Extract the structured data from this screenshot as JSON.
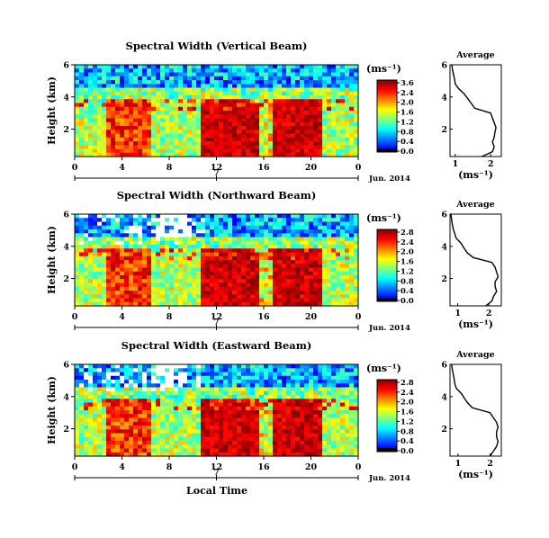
{
  "chart_data": [
    {
      "type": "heatmap",
      "title": "Spectral Width (Vertical Beam)",
      "ylabel": "Height (km)",
      "xticks": [
        "0",
        "4",
        "8",
        "12",
        "16",
        "20",
        "0"
      ],
      "yticks": [
        "6",
        "4",
        "2"
      ],
      "xlim": [
        0,
        24
      ],
      "ylim": [
        0.3,
        6
      ],
      "date_day": "7",
      "date_label": "Jun. 2014",
      "colorbar_unit": "(ms⁻¹)",
      "colorbar_ticks": [
        "3.6",
        "2.4",
        "2.0",
        "1.6",
        "1.2",
        "0.8",
        "0.4",
        "0.0"
      ],
      "average": {
        "title": "Average",
        "xlabel": "(ms⁻¹)",
        "xticks": [
          "1",
          "2"
        ],
        "yticks": [
          "6",
          "4",
          "2"
        ],
        "xlim": [
          0.85,
          2.3
        ],
        "height": [
          0.3,
          0.6,
          0.9,
          1.2,
          1.5,
          1.8,
          2.1,
          2.4,
          2.7,
          3.0,
          3.3,
          3.6,
          3.9,
          4.2,
          4.5,
          4.8,
          5.1,
          5.4,
          5.7,
          6.0
        ],
        "width": [
          1.75,
          2.05,
          2.1,
          2.05,
          2.1,
          2.12,
          2.15,
          2.1,
          2.05,
          2.0,
          1.55,
          1.45,
          1.35,
          1.25,
          1.1,
          1.0,
          0.98,
          0.95,
          0.92,
          0.9
        ]
      }
    },
    {
      "type": "heatmap",
      "title": "Spectral Width (Northward Beam)",
      "ylabel": "Height (km)",
      "xticks": [
        "0",
        "4",
        "8",
        "12",
        "16",
        "20",
        "0"
      ],
      "yticks": [
        "6",
        "4",
        "2"
      ],
      "xlim": [
        0,
        24
      ],
      "ylim": [
        0.3,
        6
      ],
      "date_day": "7",
      "date_label": "Jun. 2014",
      "colorbar_unit": "(ms⁻¹)",
      "colorbar_ticks": [
        "2.8",
        "2.4",
        "2.0",
        "1.6",
        "1.2",
        "0.8",
        "0.4",
        "0.0"
      ],
      "average": {
        "title": "Average",
        "xlabel": "(ms⁻¹)",
        "xticks": [
          "1",
          "2"
        ],
        "yticks": [
          "6",
          "4",
          "2"
        ],
        "xlim": [
          0.75,
          2.4
        ],
        "height": [
          0.3,
          0.6,
          0.9,
          1.2,
          1.5,
          1.8,
          2.1,
          2.4,
          2.7,
          3.0,
          3.3,
          3.6,
          3.9,
          4.2,
          4.5,
          4.8,
          5.1,
          5.4,
          5.7,
          6.0
        ],
        "width": [
          1.9,
          2.1,
          2.15,
          2.25,
          2.2,
          2.2,
          2.3,
          2.25,
          2.2,
          2.1,
          1.5,
          1.3,
          1.2,
          1.1,
          0.95,
          0.9,
          0.85,
          0.82,
          0.8,
          0.78
        ]
      }
    },
    {
      "type": "heatmap",
      "title": "Spectral Width (Eastward Beam)",
      "xlabel": "Local Time",
      "ylabel": "Height (km)",
      "xticks": [
        "0",
        "4",
        "8",
        "12",
        "16",
        "20",
        "0"
      ],
      "yticks": [
        "6",
        "4",
        "2"
      ],
      "xlim": [
        0,
        24
      ],
      "ylim": [
        0.3,
        6
      ],
      "date_day": "7",
      "date_label": "Jun. 2014",
      "colorbar_unit": "(ms⁻¹)",
      "colorbar_ticks": [
        "2.8",
        "2.4",
        "2.0",
        "1.6",
        "1.2",
        "0.8",
        "0.4",
        "0.0"
      ],
      "average": {
        "title": "Average",
        "xlabel": "(ms⁻¹)",
        "xticks": [
          "1",
          "2"
        ],
        "yticks": [
          "6",
          "4",
          "2"
        ],
        "xlim": [
          0.75,
          2.35
        ],
        "height": [
          0.3,
          0.6,
          0.9,
          1.2,
          1.5,
          1.8,
          2.1,
          2.4,
          2.7,
          3.0,
          3.3,
          3.6,
          3.9,
          4.2,
          4.5,
          4.8,
          5.1,
          5.4,
          5.7,
          6.0
        ],
        "width": [
          2.0,
          2.1,
          2.2,
          2.25,
          2.2,
          2.2,
          2.25,
          2.2,
          2.1,
          2.0,
          1.45,
          1.3,
          1.2,
          1.1,
          0.95,
          0.9,
          0.88,
          0.85,
          0.82,
          0.8
        ]
      }
    }
  ]
}
